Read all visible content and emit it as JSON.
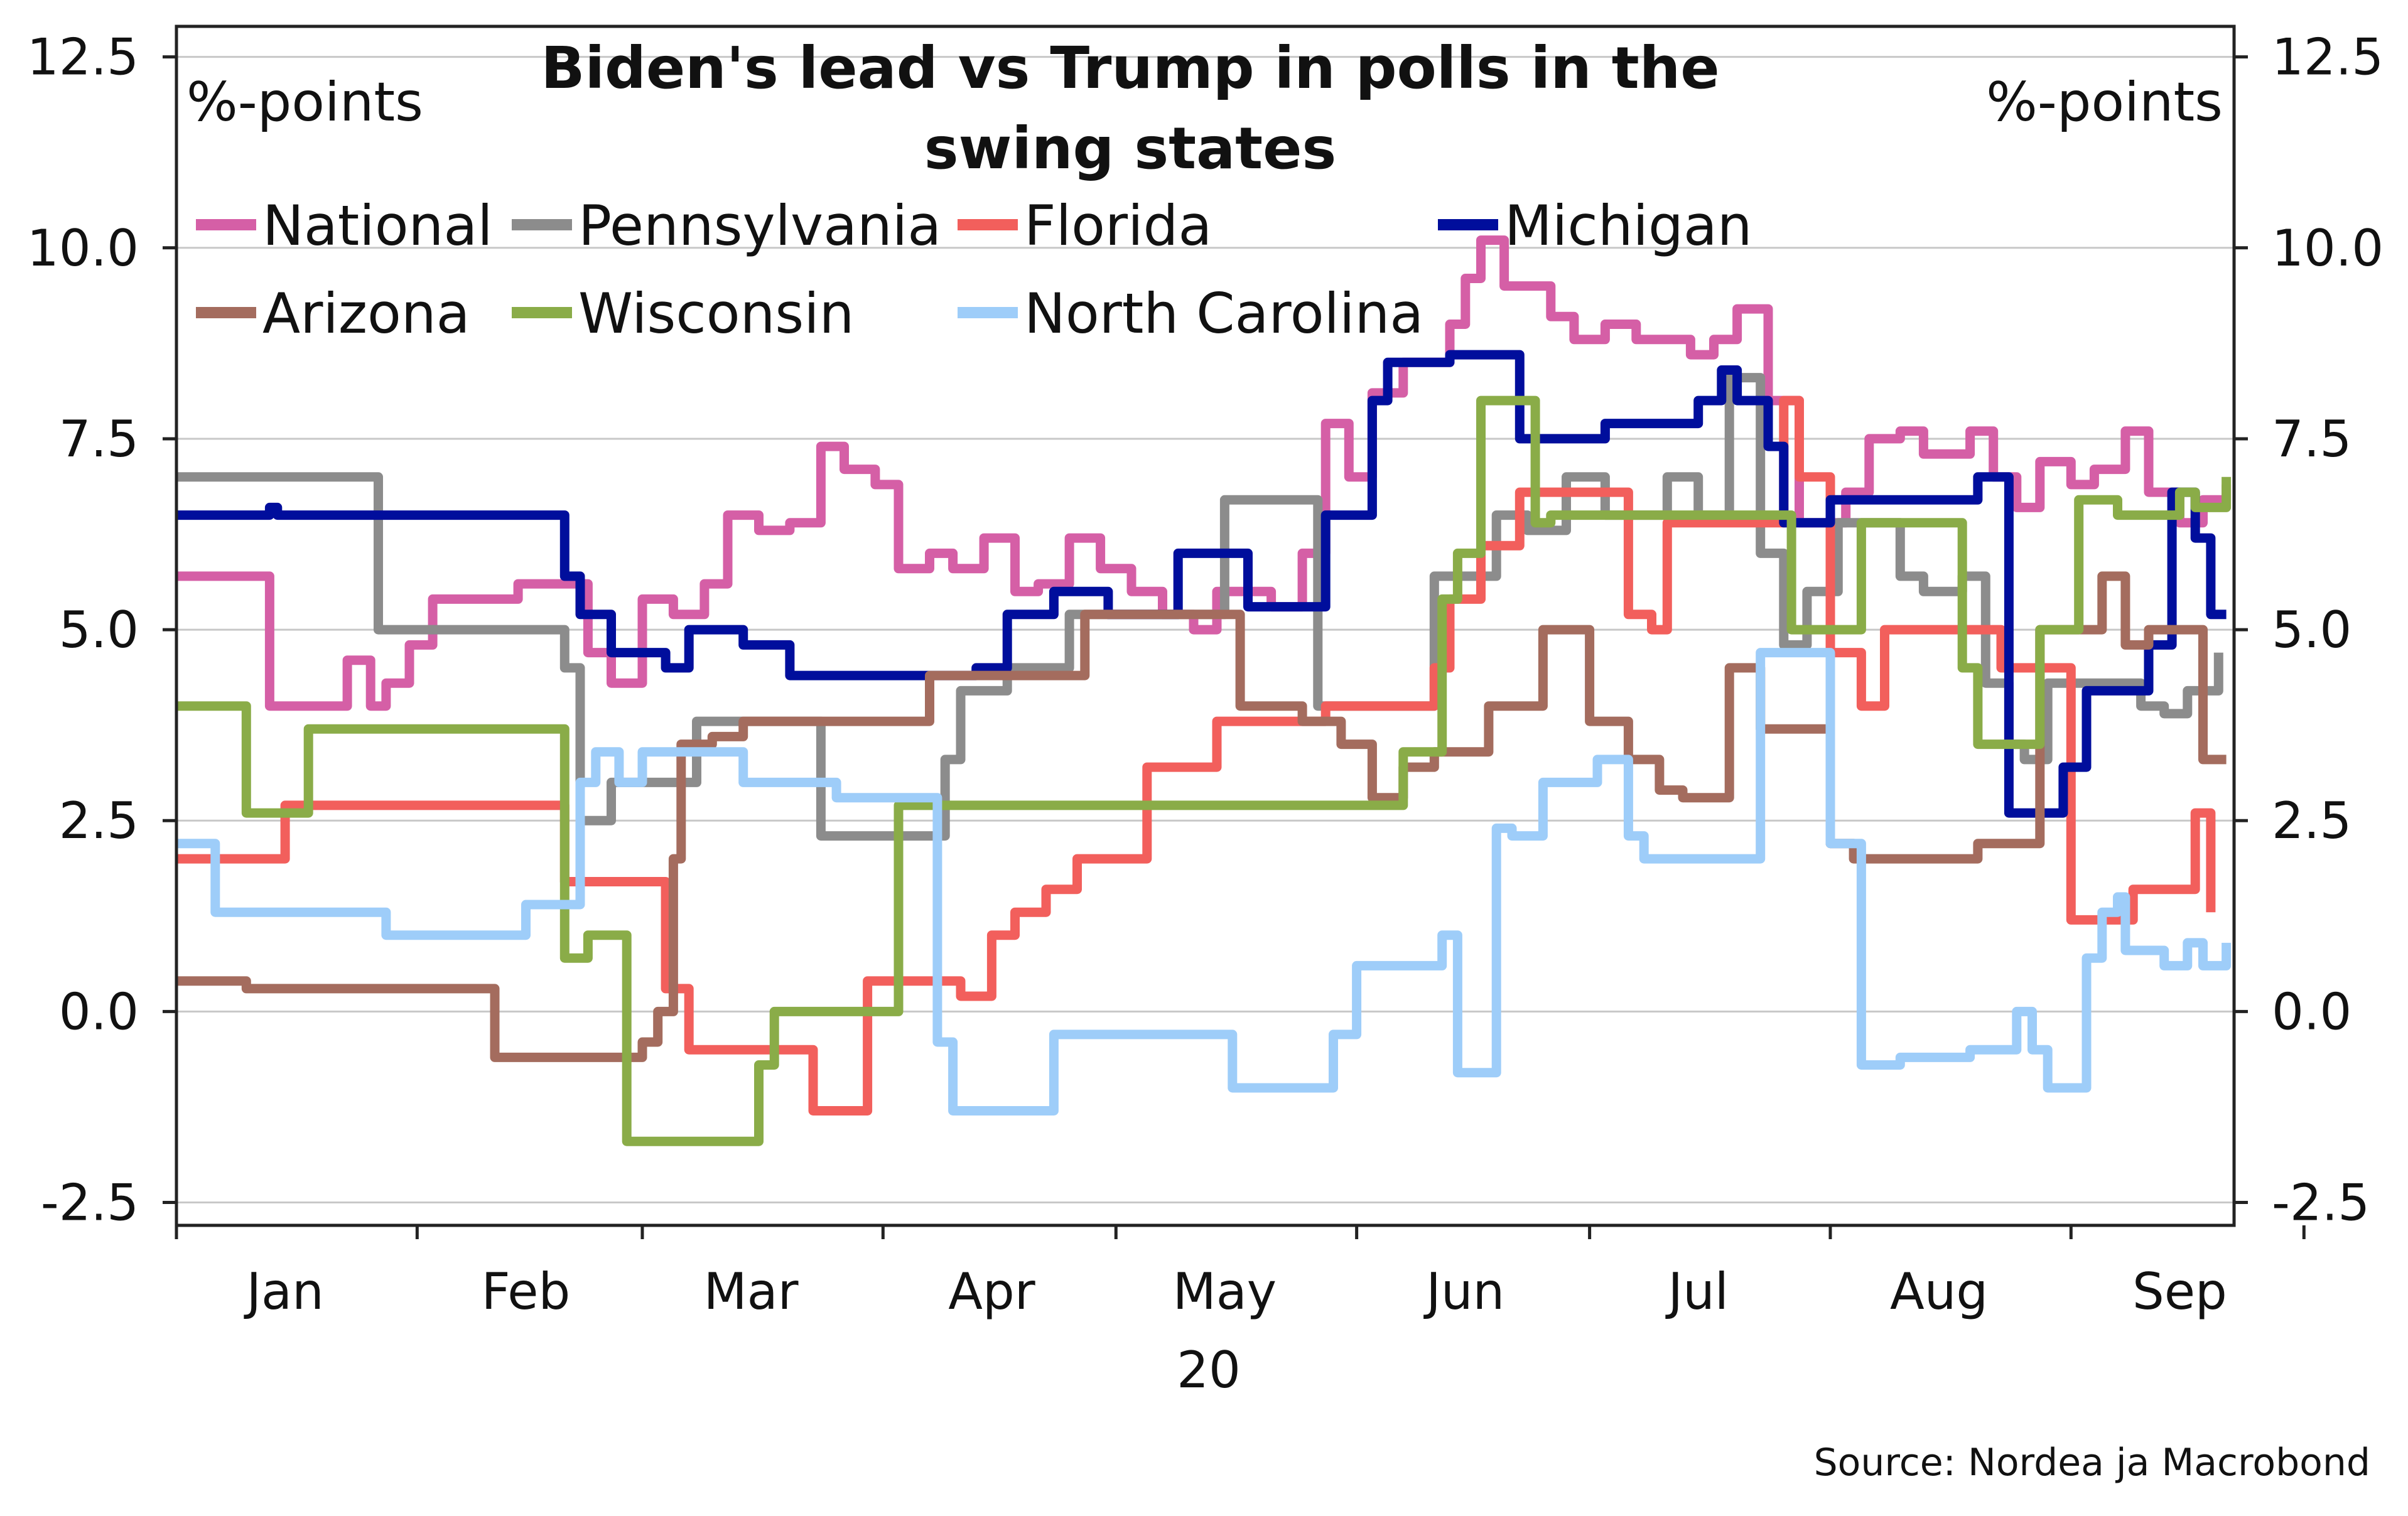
{
  "chart_data": {
    "type": "line",
    "title_lines": [
      "Biden's lead vs Trump in polls in the",
      "swing states"
    ],
    "ylabel_left": "%-points",
    "ylabel_right": "%-points",
    "y_ticks": [
      "12.5",
      "10.0",
      "7.5",
      "5.0",
      "2.5",
      "0.0",
      "-2.5"
    ],
    "ylim": [
      -2.8,
      12.9
    ],
    "x_ticks": [
      "Jan",
      "Feb",
      "Mar",
      "Apr",
      "May",
      "Jun",
      "Jul",
      "Aug",
      "Sep"
    ],
    "x_year_label": "20",
    "xlim": [
      "2020-01-01",
      "2020-09-22"
    ],
    "grid": true,
    "legend_position": "top-left",
    "source": "Source: Nordea ja Macrobond",
    "series": [
      {
        "name": "National",
        "color": "#d55fa6",
        "dates": [
          "2020-01-01",
          "2020-01-12",
          "2020-01-13",
          "2020-01-21",
          "2020-01-23",
          "2020-01-26",
          "2020-01-28",
          "2020-01-31",
          "2020-02-03",
          "2020-02-06",
          "2020-02-10",
          "2020-02-14",
          "2020-02-19",
          "2020-02-23",
          "2020-02-26",
          "2020-03-01",
          "2020-03-05",
          "2020-03-09",
          "2020-03-12",
          "2020-03-16",
          "2020-03-20",
          "2020-03-24",
          "2020-03-27",
          "2020-03-31",
          "2020-04-03",
          "2020-04-07",
          "2020-04-10",
          "2020-04-14",
          "2020-04-18",
          "2020-04-21",
          "2020-04-25",
          "2020-04-29",
          "2020-05-03",
          "2020-05-07",
          "2020-05-11",
          "2020-05-14",
          "2020-05-17",
          "2020-05-21",
          "2020-05-25",
          "2020-05-28",
          "2020-05-31",
          "2020-06-03",
          "2020-06-07",
          "2020-06-10",
          "2020-06-13",
          "2020-06-15",
          "2020-06-17",
          "2020-06-20",
          "2020-06-23",
          "2020-06-26",
          "2020-06-29",
          "2020-07-03",
          "2020-07-07",
          "2020-07-11",
          "2020-07-14",
          "2020-07-17",
          "2020-07-20",
          "2020-07-24",
          "2020-07-28",
          "2020-07-31",
          "2020-08-03",
          "2020-08-06",
          "2020-08-10",
          "2020-08-13",
          "2020-08-16",
          "2020-08-19",
          "2020-08-22",
          "2020-08-25",
          "2020-08-28",
          "2020-09-01",
          "2020-09-04",
          "2020-09-08",
          "2020-09-11",
          "2020-09-15",
          "2020-09-18",
          "2020-09-21"
        ],
        "values": [
          5.7,
          5.7,
          4.0,
          4.0,
          4.6,
          4.0,
          4.3,
          4.8,
          5.4,
          5.4,
          5.4,
          5.6,
          5.6,
          4.7,
          4.3,
          5.4,
          5.2,
          5.6,
          6.5,
          6.3,
          6.4,
          7.4,
          7.1,
          6.9,
          5.8,
          6.0,
          5.8,
          6.2,
          5.5,
          5.6,
          6.2,
          5.8,
          5.5,
          5.2,
          5.0,
          5.5,
          5.5,
          5.3,
          6.0,
          7.7,
          7.0,
          8.1,
          8.5,
          8.5,
          9.0,
          9.6,
          10.1,
          9.5,
          9.5,
          9.1,
          8.8,
          9.0,
          8.8,
          8.8,
          8.6,
          8.8,
          9.2,
          8.0,
          6.4,
          6.4,
          6.8,
          7.5,
          7.6,
          7.3,
          7.3,
          7.6,
          7.0,
          6.6,
          7.2,
          6.9,
          7.1,
          7.6,
          6.8,
          6.4,
          6.7,
          6.9
        ]
      },
      {
        "name": "Pennsylvania",
        "color": "#8c8c8c",
        "dates": [
          "2020-01-01",
          "2020-01-25",
          "2020-01-27",
          "2020-02-18",
          "2020-02-20",
          "2020-02-22",
          "2020-02-26",
          "2020-03-06",
          "2020-03-08",
          "2020-03-22",
          "2020-03-24",
          "2020-04-06",
          "2020-04-09",
          "2020-04-11",
          "2020-04-17",
          "2020-04-25",
          "2020-05-05",
          "2020-05-15",
          "2020-05-25",
          "2020-05-27",
          "2020-06-09",
          "2020-06-11",
          "2020-06-19",
          "2020-06-23",
          "2020-06-28",
          "2020-07-03",
          "2020-07-11",
          "2020-07-15",
          "2020-07-19",
          "2020-07-23",
          "2020-07-26",
          "2020-07-29",
          "2020-08-02",
          "2020-08-05",
          "2020-08-10",
          "2020-08-13",
          "2020-08-18",
          "2020-08-21",
          "2020-08-24",
          "2020-08-26",
          "2020-08-29",
          "2020-09-01",
          "2020-09-05",
          "2020-09-10",
          "2020-09-13",
          "2020-09-16",
          "2020-09-20"
        ],
        "values": [
          7.0,
          7.0,
          5.0,
          5.0,
          4.5,
          2.5,
          3.0,
          3.0,
          3.8,
          3.8,
          2.3,
          2.3,
          3.3,
          4.2,
          4.5,
          5.2,
          5.2,
          6.7,
          6.7,
          4.0,
          4.0,
          5.7,
          6.5,
          6.3,
          7.0,
          6.5,
          7.0,
          6.5,
          8.3,
          6.0,
          4.8,
          5.5,
          6.4,
          6.4,
          5.7,
          5.5,
          5.7,
          4.3,
          3.5,
          3.3,
          4.3,
          4.3,
          4.3,
          4.0,
          3.9,
          4.2,
          4.7
        ]
      },
      {
        "name": "Florida",
        "color": "#f25f5c",
        "dates": [
          "2020-01-01",
          "2020-01-13",
          "2020-01-15",
          "2020-02-18",
          "2020-02-20",
          "2020-03-01",
          "2020-03-04",
          "2020-03-07",
          "2020-03-20",
          "2020-03-23",
          "2020-03-28",
          "2020-03-30",
          "2020-04-08",
          "2020-04-11",
          "2020-04-15",
          "2020-04-18",
          "2020-04-22",
          "2020-04-26",
          "2020-05-01",
          "2020-05-05",
          "2020-05-10",
          "2020-05-14",
          "2020-05-20",
          "2020-05-28",
          "2020-06-07",
          "2020-06-11",
          "2020-06-13",
          "2020-06-17",
          "2020-06-22",
          "2020-07-02",
          "2020-07-06",
          "2020-07-09",
          "2020-07-11",
          "2020-07-23",
          "2020-07-26",
          "2020-07-28",
          "2020-08-01",
          "2020-08-05",
          "2020-08-08",
          "2020-08-20",
          "2020-08-23",
          "2020-09-01",
          "2020-09-04",
          "2020-09-09",
          "2020-09-13",
          "2020-09-17",
          "2020-09-19"
        ],
        "values": [
          2.0,
          2.0,
          2.7,
          2.7,
          1.7,
          1.7,
          0.3,
          -0.5,
          -0.5,
          -1.3,
          -1.3,
          0.4,
          0.4,
          0.2,
          1.0,
          1.3,
          1.6,
          2.0,
          2.0,
          3.2,
          3.2,
          3.8,
          3.8,
          4.0,
          4.0,
          4.5,
          5.4,
          6.1,
          6.8,
          6.8,
          5.2,
          5.0,
          6.4,
          6.4,
          8.0,
          7.0,
          4.7,
          4.0,
          5.0,
          5.0,
          4.5,
          1.2,
          1.2,
          1.6,
          1.6,
          2.6,
          1.3
        ]
      },
      {
        "name": "Michigan",
        "color": "#000e9c",
        "dates": [
          "2020-01-01",
          "2020-01-08",
          "2020-01-13",
          "2020-01-14",
          "2020-02-18",
          "2020-02-20",
          "2020-02-22",
          "2020-02-26",
          "2020-03-04",
          "2020-03-07",
          "2020-03-14",
          "2020-03-20",
          "2020-03-29",
          "2020-04-13",
          "2020-04-17",
          "2020-04-23",
          "2020-04-30",
          "2020-05-09",
          "2020-05-11",
          "2020-05-18",
          "2020-05-20",
          "2020-05-28",
          "2020-05-30",
          "2020-06-03",
          "2020-06-05",
          "2020-06-13",
          "2020-06-15",
          "2020-06-22",
          "2020-06-28",
          "2020-07-03",
          "2020-07-08",
          "2020-07-15",
          "2020-07-18",
          "2020-07-20",
          "2020-07-24",
          "2020-07-26",
          "2020-08-01",
          "2020-08-04",
          "2020-08-06",
          "2020-08-20",
          "2020-08-24",
          "2020-08-26",
          "2020-08-31",
          "2020-09-03",
          "2020-09-07",
          "2020-09-11",
          "2020-09-14",
          "2020-09-17",
          "2020-09-19",
          "2020-09-21"
        ],
        "values": [
          6.5,
          6.5,
          6.6,
          6.5,
          6.5,
          5.7,
          5.2,
          4.7,
          4.5,
          5.0,
          4.8,
          4.4,
          4.4,
          4.5,
          5.2,
          5.5,
          5.2,
          6.0,
          6.0,
          5.3,
          5.3,
          6.5,
          6.5,
          8.0,
          8.5,
          8.6,
          8.6,
          7.5,
          7.5,
          7.7,
          7.7,
          8.0,
          8.4,
          8.0,
          7.4,
          6.4,
          6.7,
          6.7,
          6.7,
          7.0,
          2.6,
          2.6,
          3.2,
          4.2,
          4.2,
          4.8,
          6.8,
          6.2,
          5.2,
          5.2
        ]
      },
      {
        "name": "Arizona",
        "color": "#a46c5e",
        "dates": [
          "2020-01-01",
          "2020-01-09",
          "2020-01-10",
          "2020-02-09",
          "2020-02-11",
          "2020-02-26",
          "2020-03-01",
          "2020-03-03",
          "2020-03-05",
          "2020-03-06",
          "2020-03-10",
          "2020-03-14",
          "2020-03-20",
          "2020-03-26",
          "2020-04-05",
          "2020-04-07",
          "2020-04-23",
          "2020-04-27",
          "2020-05-08",
          "2020-05-17",
          "2020-05-25",
          "2020-05-30",
          "2020-06-03",
          "2020-06-07",
          "2020-06-11",
          "2020-06-18",
          "2020-06-21",
          "2020-06-25",
          "2020-06-28",
          "2020-07-01",
          "2020-07-06",
          "2020-07-10",
          "2020-07-13",
          "2020-07-17",
          "2020-07-19",
          "2020-07-23",
          "2020-07-27",
          "2020-08-01",
          "2020-08-04",
          "2020-08-08",
          "2020-08-12",
          "2020-08-20",
          "2020-08-26",
          "2020-08-28",
          "2020-09-02",
          "2020-09-05",
          "2020-09-08",
          "2020-09-11",
          "2020-09-14",
          "2020-09-18",
          "2020-09-21"
        ],
        "values": [
          0.4,
          0.4,
          0.3,
          0.3,
          -0.6,
          -0.6,
          -0.4,
          0.0,
          2.0,
          3.5,
          3.6,
          3.8,
          3.8,
          3.8,
          3.8,
          4.4,
          4.4,
          5.2,
          5.2,
          4.0,
          3.8,
          3.5,
          2.8,
          3.2,
          3.4,
          4.0,
          4.0,
          5.0,
          5.0,
          3.8,
          3.3,
          2.9,
          2.8,
          2.8,
          4.5,
          3.7,
          3.7,
          2.2,
          2.0,
          2.0,
          2.0,
          2.2,
          2.2,
          5.0,
          5.0,
          5.7,
          4.8,
          5.0,
          5.0,
          3.3,
          3.3
        ]
      },
      {
        "name": "Wisconsin",
        "color": "#8aac48",
        "dates": [
          "2020-01-01",
          "2020-01-08",
          "2020-01-10",
          "2020-01-16",
          "2020-01-18",
          "2020-02-18",
          "2020-02-20",
          "2020-02-23",
          "2020-02-27",
          "2020-02-28",
          "2020-03-12",
          "2020-03-16",
          "2020-03-18",
          "2020-03-22",
          "2020-04-01",
          "2020-04-03",
          "2020-04-07",
          "2020-05-30",
          "2020-06-07",
          "2020-06-12",
          "2020-06-14",
          "2020-06-17",
          "2020-06-24",
          "2020-06-26",
          "2020-06-30",
          "2020-07-22",
          "2020-07-27",
          "2020-08-01",
          "2020-08-05",
          "2020-08-13",
          "2020-08-18",
          "2020-08-20",
          "2020-08-25",
          "2020-08-28",
          "2020-09-02",
          "2020-09-07",
          "2020-09-15",
          "2020-09-17",
          "2020-09-21"
        ],
        "values": [
          4.0,
          4.0,
          2.6,
          2.6,
          3.7,
          3.7,
          0.7,
          1.0,
          1.0,
          -1.7,
          -1.7,
          -0.7,
          0.0,
          0.0,
          0.0,
          2.7,
          2.7,
          2.7,
          3.4,
          5.4,
          6.0,
          8.0,
          6.4,
          6.5,
          6.5,
          6.5,
          5.0,
          5.0,
          6.4,
          6.4,
          4.5,
          3.5,
          3.5,
          5.0,
          6.7,
          6.5,
          6.8,
          6.6,
          7.0
        ]
      },
      {
        "name": "North Carolina",
        "color": "#9ecdf9",
        "dates": [
          "2020-01-01",
          "2020-01-05",
          "2020-01-06",
          "2020-01-26",
          "2020-01-28",
          "2020-02-12",
          "2020-02-15",
          "2020-02-19",
          "2020-02-22",
          "2020-02-24",
          "2020-02-27",
          "2020-03-01",
          "2020-03-14",
          "2020-03-26",
          "2020-04-08",
          "2020-04-10",
          "2020-04-21",
          "2020-04-23",
          "2020-05-06",
          "2020-05-16",
          "2020-05-27",
          "2020-05-29",
          "2020-06-01",
          "2020-06-10",
          "2020-06-12",
          "2020-06-14",
          "2020-06-17",
          "2020-06-19",
          "2020-06-21",
          "2020-06-25",
          "2020-06-28",
          "2020-07-02",
          "2020-07-06",
          "2020-07-08",
          "2020-07-21",
          "2020-07-23",
          "2020-07-29",
          "2020-08-01",
          "2020-08-05",
          "2020-08-10",
          "2020-08-13",
          "2020-08-19",
          "2020-08-21",
          "2020-08-25",
          "2020-08-27",
          "2020-08-29",
          "2020-09-03",
          "2020-09-05",
          "2020-09-07",
          "2020-09-08",
          "2020-09-13",
          "2020-09-16",
          "2020-09-18",
          "2020-09-21"
        ],
        "values": [
          2.2,
          2.2,
          1.3,
          1.3,
          1.0,
          1.0,
          1.4,
          1.4,
          3.0,
          3.4,
          3.0,
          3.4,
          3.0,
          2.8,
          -0.4,
          -1.3,
          -1.3,
          -0.3,
          -0.3,
          -1.0,
          -1.0,
          -0.3,
          0.6,
          0.6,
          1.0,
          -0.8,
          -0.8,
          2.4,
          2.3,
          3.0,
          3.0,
          3.3,
          2.3,
          2.0,
          2.0,
          4.7,
          4.7,
          2.2,
          -0.7,
          -0.6,
          -0.6,
          -0.5,
          -0.5,
          0.0,
          -0.5,
          -1.0,
          0.7,
          1.3,
          1.5,
          0.8,
          0.6,
          0.9,
          0.6,
          0.9
        ]
      }
    ]
  }
}
